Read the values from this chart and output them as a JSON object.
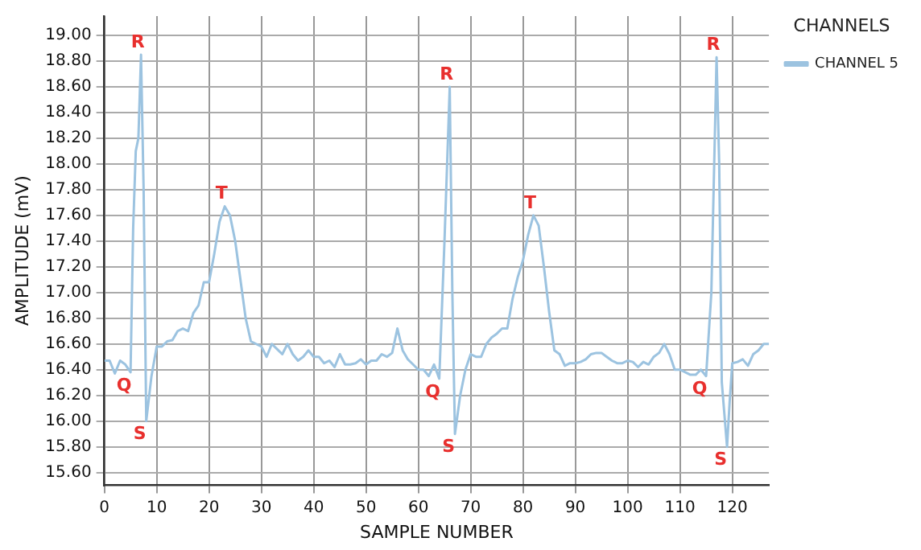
{
  "chart_data": {
    "type": "line",
    "xlabel": "SAMPLE NUMBER",
    "ylabel": "AMPLITUDE (mV)",
    "legend_title": "CHANNELS",
    "legend": "top right",
    "grid": true,
    "marker": "none",
    "line_style": "solid",
    "xlim": [
      0,
      127
    ],
    "xticks": [
      0,
      10,
      20,
      30,
      40,
      50,
      60,
      70,
      80,
      90,
      100,
      110,
      120
    ],
    "ylim": [
      15.5,
      19.15
    ],
    "yticks": [
      {
        "value": 15.6,
        "label": "15.60"
      },
      {
        "value": 15.8,
        "label": "15.80"
      },
      {
        "value": 16,
        "label": "16.00"
      },
      {
        "value": 16.2,
        "label": "16.20"
      },
      {
        "value": 16.4,
        "label": "16.40"
      },
      {
        "value": 16.6,
        "label": "16.60"
      },
      {
        "value": 16.8,
        "label": "16.80"
      },
      {
        "value": 17,
        "label": "17.00"
      },
      {
        "value": 17.2,
        "label": "17.20"
      },
      {
        "value": 17.4,
        "label": "17.40"
      },
      {
        "value": 17.6,
        "label": "17.60"
      },
      {
        "value": 17.8,
        "label": "17.80"
      },
      {
        "value": 18,
        "label": "18.00"
      },
      {
        "value": 18.2,
        "label": "18.20"
      },
      {
        "value": 18.4,
        "label": "18.40"
      },
      {
        "value": 18.6,
        "label": "18.60"
      },
      {
        "value": 18.8,
        "label": "18.80"
      },
      {
        "value": 19,
        "label": "19.00"
      }
    ],
    "x": [
      0,
      1,
      2,
      3,
      4,
      5,
      5.5,
      6,
      6.5,
      7,
      7.5,
      8,
      9,
      10,
      11,
      12,
      13,
      14,
      15,
      16,
      17,
      18,
      19,
      20,
      21,
      22,
      23,
      24,
      25,
      26,
      27,
      28,
      29,
      30,
      31,
      32,
      33,
      34,
      35,
      36,
      37,
      38,
      39,
      40,
      41,
      42,
      43,
      44,
      45,
      46,
      47,
      48,
      49,
      50,
      51,
      52,
      53,
      54,
      55,
      56,
      57,
      58,
      59,
      60,
      61,
      62,
      63,
      64,
      65,
      66,
      66.5,
      67,
      68,
      69,
      70,
      71,
      72,
      73,
      74,
      75,
      76,
      77,
      78,
      79,
      80,
      81,
      82,
      83,
      84,
      85,
      86,
      87,
      88,
      89,
      90,
      91,
      92,
      93,
      94,
      95,
      96,
      97,
      98,
      99,
      100,
      101,
      102,
      103,
      104,
      105,
      106,
      107,
      108,
      109,
      110,
      111,
      112,
      113,
      114,
      115,
      116,
      117,
      117.5,
      118,
      119,
      119.5,
      120,
      121,
      122,
      123,
      124,
      125,
      126,
      127
    ],
    "series": [
      {
        "name": "CHANNEL 5",
        "color": "#9cc3e0",
        "values": [
          16.47,
          16.47,
          16.37,
          16.47,
          16.44,
          16.38,
          17.5,
          18.1,
          18.2,
          18.85,
          17.8,
          16.0,
          16.35,
          16.58,
          16.58,
          16.62,
          16.63,
          16.7,
          16.72,
          16.7,
          16.84,
          16.9,
          17.08,
          17.08,
          17.3,
          17.55,
          17.67,
          17.6,
          17.4,
          17.1,
          16.8,
          16.62,
          16.6,
          16.58,
          16.5,
          16.6,
          16.56,
          16.52,
          16.6,
          16.52,
          16.47,
          16.5,
          16.55,
          16.5,
          16.5,
          16.45,
          16.47,
          16.42,
          16.52,
          16.44,
          16.44,
          16.45,
          16.48,
          16.44,
          16.47,
          16.47,
          16.52,
          16.5,
          16.53,
          16.72,
          16.55,
          16.48,
          16.44,
          16.4,
          16.4,
          16.35,
          16.44,
          16.33,
          17.4,
          18.6,
          17.0,
          15.9,
          16.2,
          16.4,
          16.52,
          16.5,
          16.5,
          16.6,
          16.65,
          16.68,
          16.72,
          16.72,
          16.95,
          17.12,
          17.25,
          17.45,
          17.6,
          17.52,
          17.2,
          16.85,
          16.55,
          16.52,
          16.43,
          16.45,
          16.45,
          16.46,
          16.48,
          16.52,
          16.53,
          16.53,
          16.5,
          16.47,
          16.45,
          16.45,
          16.47,
          16.46,
          16.42,
          16.46,
          16.44,
          16.5,
          16.53,
          16.6,
          16.52,
          16.4,
          16.4,
          16.38,
          16.36,
          16.36,
          16.4,
          16.35,
          17.0,
          18.83,
          18.0,
          16.3,
          15.8,
          16.15,
          16.45,
          16.46,
          16.48,
          16.43,
          16.52,
          16.55,
          16.6,
          16.6
        ]
      }
    ],
    "annotations": [
      {
        "text": "R",
        "x": 7,
        "y": 18.85
      },
      {
        "text": "Q",
        "x": 5,
        "y": 16.38
      },
      {
        "text": "S",
        "x": 8,
        "y": 16.0
      },
      {
        "text": "T",
        "x": 23,
        "y": 17.67
      },
      {
        "text": "R",
        "x": 66,
        "y": 18.6
      },
      {
        "text": "Q",
        "x": 64,
        "y": 16.33
      },
      {
        "text": "S",
        "x": 67,
        "y": 15.9
      },
      {
        "text": "T",
        "x": 82,
        "y": 17.6
      },
      {
        "text": "R",
        "x": 117,
        "y": 18.83
      },
      {
        "text": "Q",
        "x": 115,
        "y": 16.35
      },
      {
        "text": "S",
        "x": 119,
        "y": 15.8
      }
    ]
  }
}
